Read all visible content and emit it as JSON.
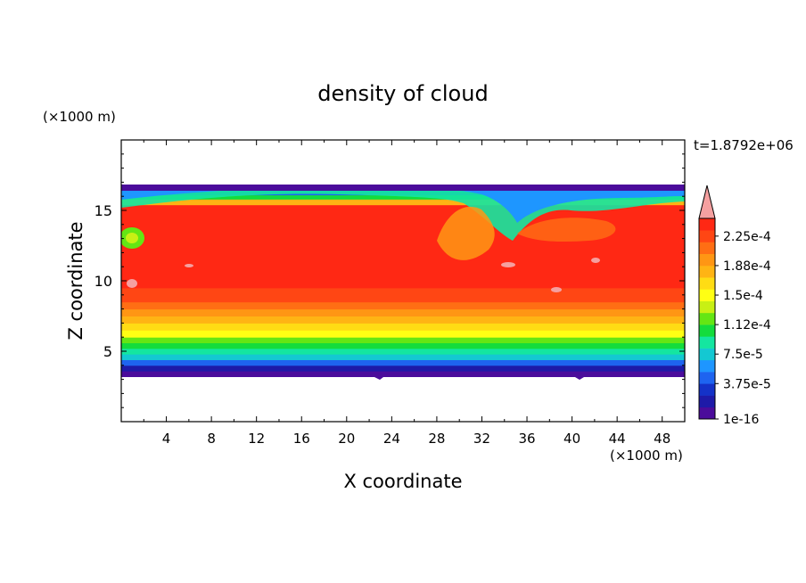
{
  "chart_data": {
    "type": "heatmap",
    "title": "density of cloud",
    "xlabel": "X coordinate",
    "ylabel": "Z coordinate",
    "x_unit": "(×1000 m)",
    "z_unit": "(×1000 m)",
    "time_label": "t=1.8792e+06",
    "xlim": [
      0,
      50
    ],
    "zlim": [
      0,
      20
    ],
    "x_ticks": [
      "4",
      "8",
      "12",
      "16",
      "20",
      "24",
      "28",
      "32",
      "36",
      "40",
      "44",
      "48"
    ],
    "z_ticks": [
      "5",
      "10",
      "15"
    ],
    "colorbar": {
      "labels": [
        "1e-16",
        "3.75e-5",
        "7.5e-5",
        "1.12e-4",
        "1.5e-4",
        "1.88e-4",
        "2.25e-4"
      ],
      "colors": [
        "#4b0c9b",
        "#1e1aa8",
        "#1432c8",
        "#1e64f0",
        "#1e96ff",
        "#14c8d2",
        "#14e6a0",
        "#14dc3c",
        "#64e614",
        "#c8f014",
        "#ffff14",
        "#ffdc14",
        "#ffb414",
        "#ff9614",
        "#ff6e14",
        "#ff4614",
        "#ff2814"
      ],
      "overflow_color": "#f5a0a0"
    },
    "profile": {
      "z": [
        3.3,
        3.6,
        4.0,
        4.4,
        4.8,
        5.2,
        5.6,
        6.0,
        6.5,
        7.0,
        7.5,
        8.0,
        8.5,
        9.0,
        9.5,
        15.0,
        15.4,
        15.8,
        16.1,
        16.5
      ],
      "density": [
        1e-16,
        1.5e-05,
        4e-05,
        7e-05,
        9e-05,
        0.000105,
        0.000125,
        0.000145,
        0.00016,
        0.000175,
        0.00019,
        0.000205,
        0.00022,
        0.00023,
        0.00024,
        0.00024,
        0.00018,
        0.00011,
        5e-05,
        1e-16
      ]
    }
  }
}
